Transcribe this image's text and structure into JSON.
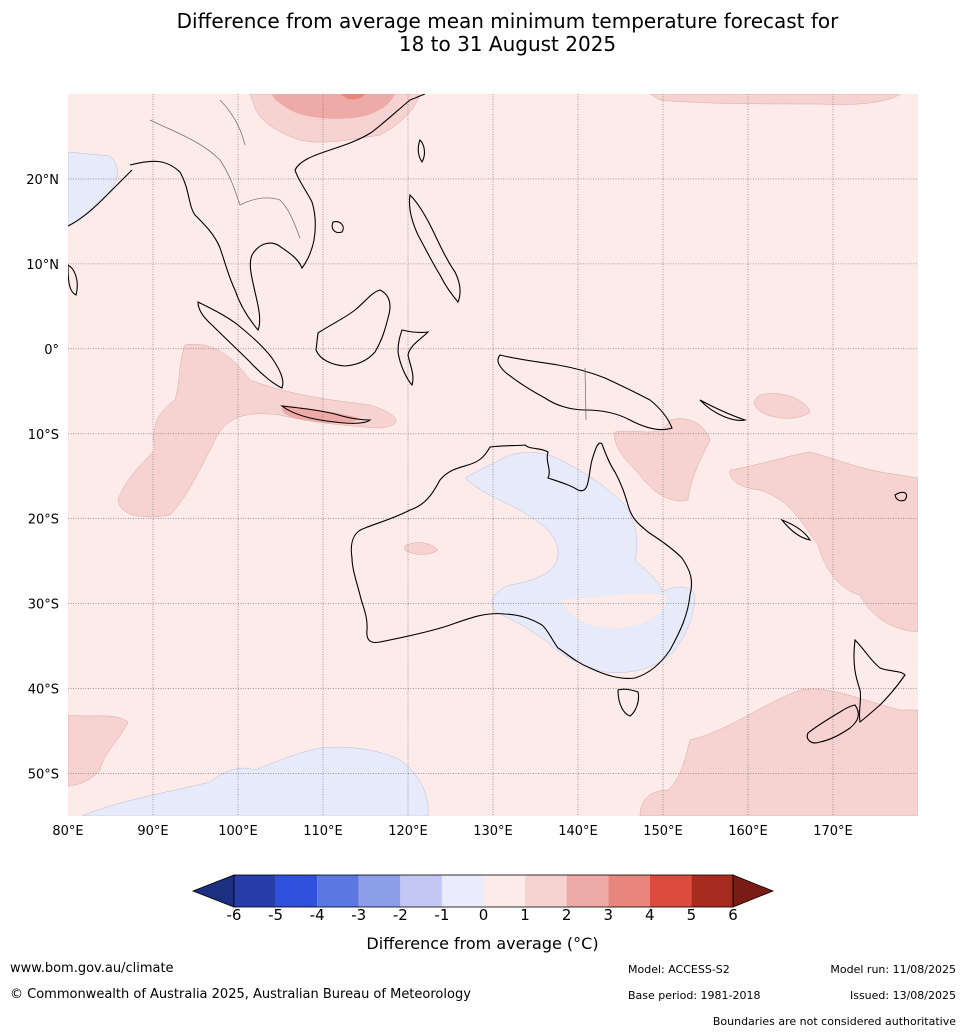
{
  "title_line1": "Difference from average mean minimum temperature forecast for",
  "title_line2": "18 to 31 August 2025",
  "map": {
    "lon_range": [
      80,
      180
    ],
    "lat_range": [
      -55,
      30
    ],
    "lon_ticks": [
      "80°E",
      "90°E",
      "100°E",
      "110°E",
      "120°E",
      "130°E",
      "140°E",
      "150°E",
      "160°E",
      "170°E"
    ],
    "lat_ticks": [
      "20°N",
      "10°N",
      "0°",
      "10°S",
      "20°S",
      "30°S",
      "40°S",
      "50°S"
    ],
    "background_color": "#fcebe9"
  },
  "colorbar": {
    "labels": [
      "-6",
      "-5",
      "-4",
      "-3",
      "-2",
      "-1",
      "0",
      "1",
      "2",
      "3",
      "4",
      "5",
      "6"
    ],
    "colors": [
      "#273da8",
      "#3051dd",
      "#5b77e0",
      "#8c9ee9",
      "#c2c8f3",
      "#eaecfb",
      "#fcebe9",
      "#f6d3d1",
      "#edaaa6",
      "#e8857d",
      "#db4b3e",
      "#a82b20"
    ],
    "under_color": "#1c2f80",
    "over_color": "#7a1c16",
    "axis_label": "Difference from average (°C)"
  },
  "footer": {
    "website": "www.bom.gov.au/climate",
    "copyright": "© Commonwealth of Australia 2025, Australian Bureau of Meteorology",
    "model": "Model: ACCESS-S2",
    "base_period": "Base period: 1981-2018",
    "model_run": "Model run: 11/08/2025",
    "issued": "Issued: 13/08/2025",
    "boundaries_note": "Boundaries are not considered authoritative"
  }
}
